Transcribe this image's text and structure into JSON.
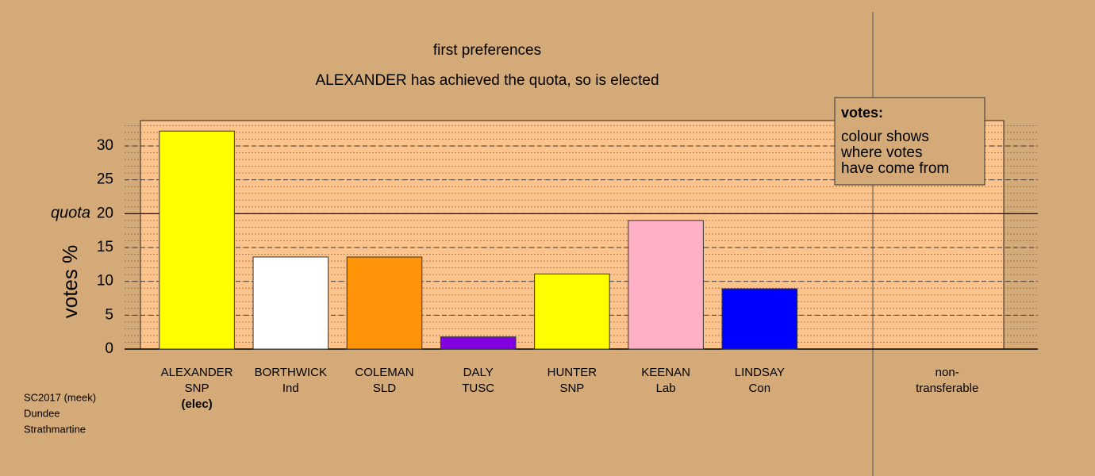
{
  "chart_data": {
    "type": "bar",
    "title": "first preferences",
    "subtitle": "ALEXANDER has achieved the quota, so is elected",
    "y_label": "votes %",
    "categories": [
      "ALEXANDER",
      "BORTHWICK",
      "COLEMAN",
      "DALY",
      "HUNTER",
      "KEENAN",
      "LINDSAY",
      null,
      "non-"
    ],
    "parties": [
      "SNP",
      "Ind",
      "SLD",
      "TUSC",
      "SNP",
      "Lab",
      "Con",
      null,
      "transferable"
    ],
    "elected_note": "(elec)",
    "values": [
      32.2,
      13.6,
      13.6,
      1.8,
      11.1,
      19.0,
      8.9,
      null,
      0
    ],
    "colors": [
      "#ffff00",
      "#ffffff",
      "#ff9408",
      "#8000e0",
      "#ffff00",
      "#ffb0c4",
      "#0000ff",
      null,
      "#888888"
    ],
    "ylim": [
      0,
      33.75
    ],
    "yticks": [
      0,
      5,
      10,
      15,
      20,
      25,
      30
    ],
    "grid": true,
    "minor_grid_step": 1,
    "quota": 20,
    "quota_label": "quota",
    "legend": {
      "title": "votes:",
      "lines": [
        "colour shows",
        "where votes",
        "have come from"
      ]
    },
    "footnote": [
      "SC2017 (meek)",
      "Dundee",
      "Strathmartine"
    ]
  }
}
